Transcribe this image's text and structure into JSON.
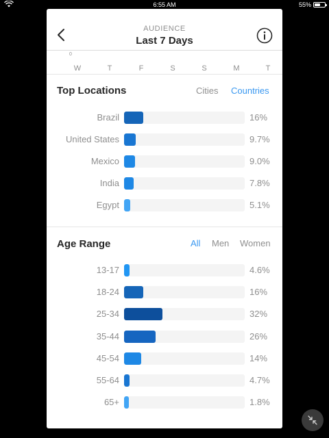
{
  "status_bar": {
    "time": "6:55 AM",
    "battery": "55%",
    "battery_level": 0.55
  },
  "header": {
    "subtitle": "AUDIENCE",
    "title": "Last 7 Days"
  },
  "chart_strip": {
    "tick_label": "0",
    "days": [
      "W",
      "T",
      "F",
      "S",
      "S",
      "M",
      "T"
    ]
  },
  "top_locations": {
    "title": "Top Locations",
    "options": [
      "Cities",
      "Countries"
    ],
    "active_option": "Countries",
    "items": [
      {
        "label": "Brazil",
        "percent": "16%",
        "value": 16,
        "color": "#1565b8"
      },
      {
        "label": "United States",
        "percent": "9.7%",
        "value": 9.7,
        "color": "#1976d2"
      },
      {
        "label": "Mexico",
        "percent": "9.0%",
        "value": 9.0,
        "color": "#1e88e5"
      },
      {
        "label": "India",
        "percent": "7.8%",
        "value": 7.8,
        "color": "#1e88e5"
      },
      {
        "label": "Egypt",
        "percent": "5.1%",
        "value": 5.1,
        "color": "#42a5f5"
      }
    ]
  },
  "age_range": {
    "title": "Age Range",
    "options": [
      "All",
      "Men",
      "Women"
    ],
    "active_option": "All",
    "items": [
      {
        "label": "13-17",
        "percent": "4.6%",
        "value": 4.6,
        "color": "#2196f3"
      },
      {
        "label": "18-24",
        "percent": "16%",
        "value": 16,
        "color": "#1565b8"
      },
      {
        "label": "25-34",
        "percent": "32%",
        "value": 32,
        "color": "#0d4f9c"
      },
      {
        "label": "35-44",
        "percent": "26%",
        "value": 26,
        "color": "#1565c0"
      },
      {
        "label": "45-54",
        "percent": "14%",
        "value": 14,
        "color": "#1e88e5"
      },
      {
        "label": "55-64",
        "percent": "4.7%",
        "value": 4.7,
        "color": "#1976d2"
      },
      {
        "label": "65+",
        "percent": "1.8%",
        "value": 1.8,
        "color": "#42a5f5"
      }
    ]
  },
  "colors": {
    "accent": "#3897f0",
    "text": "#262626",
    "muted": "#8e8e8e",
    "track": "#f4f4f4"
  },
  "icons": {
    "back": "chevron-left-icon",
    "info": "info-icon",
    "minimize": "minimize-arrows-icon",
    "wifi": "wifi-icon",
    "battery": "battery-icon"
  }
}
